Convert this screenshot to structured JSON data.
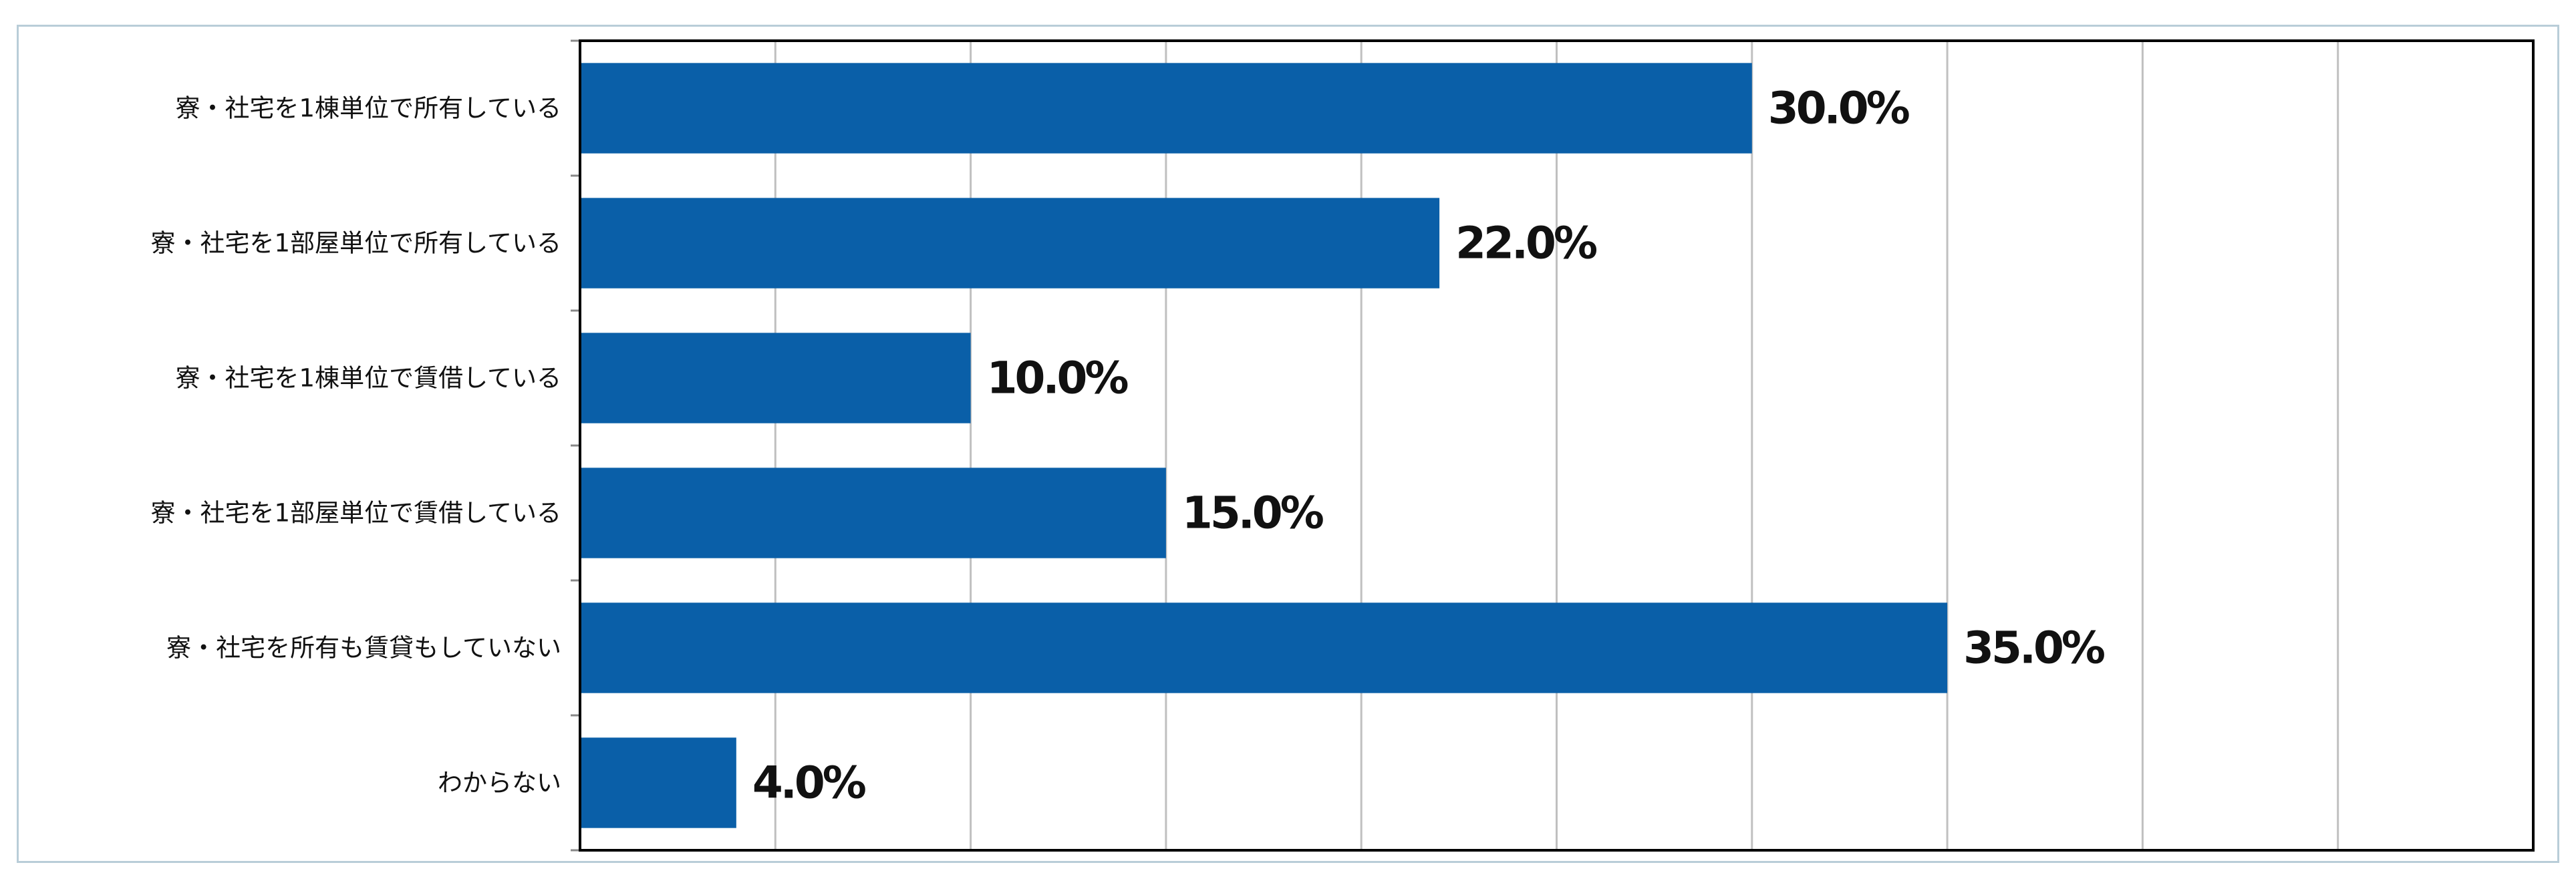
{
  "chart_data": {
    "type": "bar",
    "orientation": "horizontal",
    "categories": [
      "寮・社宅を1棟単位で所有している",
      "寮・社宅を1部屋単位で所有している",
      "寮・社宅を1棟単位で賃借している",
      "寮・社宅を1部屋単位で賃借している",
      "寮・社宅を所有も賃貸もしていない",
      "わからない"
    ],
    "values": [
      30.0,
      22.0,
      10.0,
      15.0,
      35.0,
      4.0
    ],
    "value_labels": [
      "30.0%",
      "22.0%",
      "10.0%",
      "15.0%",
      "35.0%",
      "4.0%"
    ],
    "xlim": [
      0,
      50
    ],
    "x_grid_step": 5,
    "grid": true,
    "legend": "none",
    "title": "",
    "xlabel": "",
    "ylabel": "",
    "colors": {
      "bar": "#0a5fa8",
      "grid": "#c0c0c0",
      "axis": "#000000",
      "frame": "#b9cdd8"
    }
  }
}
